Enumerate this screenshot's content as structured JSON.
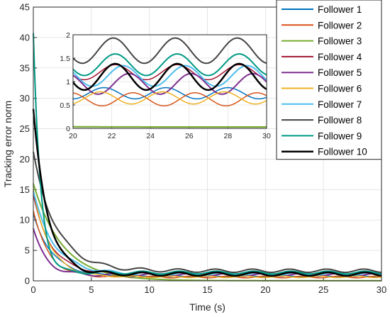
{
  "chart_data": {
    "type": "line",
    "xlabel": "Time (s)",
    "ylabel": "Tracking error norm",
    "xlim": [
      0,
      30
    ],
    "ylim": [
      0,
      45
    ],
    "xticks": [
      "0",
      "5",
      "10",
      "15",
      "20",
      "25",
      "30"
    ],
    "yticks": [
      "0",
      "5",
      "10",
      "15",
      "20",
      "25",
      "30",
      "35",
      "40",
      "45"
    ],
    "grid": true,
    "legend_position": "top-right",
    "series": [
      {
        "name": "Follower 1",
        "color": "#0072BD",
        "initial": 11.0,
        "decay": 0.6,
        "mean": 0.75,
        "amp": 0.12,
        "phase": 3.14,
        "width": 1.5
      },
      {
        "name": "Follower 2",
        "color": "#D95319",
        "initial": 11.5,
        "decay": 0.75,
        "mean": 0.62,
        "amp": 0.14,
        "phase": 0.2,
        "width": 1.5
      },
      {
        "name": "Follower 3",
        "color": "#77AC30",
        "initial": 16.0,
        "decay": 0.4,
        "mean": 0.03,
        "amp": 0.0,
        "phase": 0.0,
        "width": 2.0
      },
      {
        "name": "Follower 4",
        "color": "#A2142F",
        "initial": 14.0,
        "decay": 0.65,
        "mean": 1.2,
        "amp": 0.16,
        "phase": 2.0,
        "width": 1.5
      },
      {
        "name": "Follower 5",
        "color": "#7E2F8E",
        "initial": 8.5,
        "decay": 0.9,
        "mean": 0.95,
        "amp": 0.22,
        "phase": 0.6,
        "width": 2.0
      },
      {
        "name": "Follower 6",
        "color": "#EDB120",
        "initial": 15.0,
        "decay": 0.7,
        "mean": 0.65,
        "amp": 0.13,
        "phase": 3.5,
        "width": 1.5
      },
      {
        "name": "Follower 7",
        "color": "#4DBEEE",
        "initial": 14.5,
        "decay": 0.55,
        "mean": 1.12,
        "amp": 0.22,
        "phase": 1.2,
        "width": 2.0
      },
      {
        "name": "Follower 8",
        "color": "#444444",
        "initial": 21.0,
        "decay": 0.5,
        "mean": 1.66,
        "amp": 0.27,
        "phase": 2.2,
        "width": 2.0
      },
      {
        "name": "Follower 9",
        "color": "#009A85",
        "initial": 40.5,
        "decay": 1.6,
        "mean": 1.36,
        "amp": 0.23,
        "phase": 2.0,
        "width": 2.0
      },
      {
        "name": "Follower 10",
        "color": "#000000",
        "initial": 28.0,
        "decay": 0.8,
        "mean": 1.1,
        "amp": 0.28,
        "phase": 2.0,
        "width": 2.5
      }
    ],
    "oscillation_period": 3.2,
    "inset": {
      "xlim": [
        20,
        30
      ],
      "ylim": [
        0,
        2
      ],
      "xticks": [
        "20",
        "22",
        "24",
        "26",
        "28",
        "30"
      ],
      "yticks": [
        "0",
        "0.5",
        "1",
        "1.5",
        "2"
      ]
    }
  }
}
